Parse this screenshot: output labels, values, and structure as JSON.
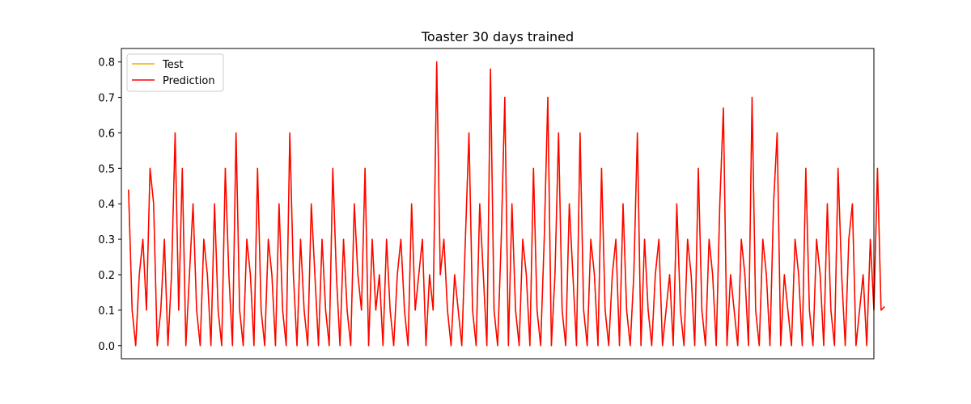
{
  "chart_data": {
    "type": "line",
    "title": "Toaster 30 days trained",
    "xlabel": "",
    "ylabel": "",
    "x_ticks_visible": false,
    "xlim": [
      -2,
      208
    ],
    "ylim": [
      -0.037,
      0.838
    ],
    "y_ticks": [
      "0.0",
      "0.1",
      "0.2",
      "0.3",
      "0.4",
      "0.5",
      "0.6",
      "0.7",
      "0.8"
    ],
    "grid": false,
    "legend": "upper left",
    "series": [
      {
        "name": "Test",
        "color": "#ffa500",
        "values": [
          0.44,
          0.1,
          0.0,
          0.2,
          0.3,
          0.1,
          0.5,
          0.4,
          0.0,
          0.1,
          0.3,
          0.0,
          0.2,
          0.6,
          0.1,
          0.5,
          0.0,
          0.2,
          0.4,
          0.1,
          0.0,
          0.3,
          0.2,
          0.0,
          0.4,
          0.1,
          0.0,
          0.5,
          0.2,
          0.0,
          0.6,
          0.1,
          0.0,
          0.3,
          0.2,
          0.0,
          0.5,
          0.1,
          0.0,
          0.3,
          0.2,
          0.0,
          0.4,
          0.1,
          0.0,
          0.6,
          0.2,
          0.0,
          0.3,
          0.1,
          0.0,
          0.4,
          0.2,
          0.0,
          0.3,
          0.1,
          0.0,
          0.5,
          0.2,
          0.0,
          0.3,
          0.1,
          0.0,
          0.4,
          0.2,
          0.1,
          0.5,
          0.0,
          0.3,
          0.1,
          0.2,
          0.0,
          0.3,
          0.1,
          0.0,
          0.2,
          0.3,
          0.1,
          0.0,
          0.4,
          0.1,
          0.2,
          0.3,
          0.0,
          0.2,
          0.1,
          0.8,
          0.2,
          0.3,
          0.1,
          0.0,
          0.2,
          0.1,
          0.0,
          0.3,
          0.6,
          0.1,
          0.0,
          0.4,
          0.2,
          0.0,
          0.78,
          0.1,
          0.0,
          0.3,
          0.7,
          0.0,
          0.4,
          0.1,
          0.0,
          0.3,
          0.2,
          0.0,
          0.5,
          0.1,
          0.0,
          0.3,
          0.7,
          0.0,
          0.2,
          0.6,
          0.1,
          0.0,
          0.4,
          0.2,
          0.0,
          0.6,
          0.1,
          0.0,
          0.3,
          0.2,
          0.0,
          0.5,
          0.1,
          0.0,
          0.2,
          0.3,
          0.0,
          0.4,
          0.1,
          0.0,
          0.2,
          0.6,
          0.0,
          0.3,
          0.1,
          0.0,
          0.2,
          0.3,
          0.0,
          0.1,
          0.2,
          0.0,
          0.4,
          0.1,
          0.0,
          0.3,
          0.2,
          0.0,
          0.5,
          0.1,
          0.0,
          0.3,
          0.2,
          0.0,
          0.4,
          0.67,
          0.0,
          0.2,
          0.1,
          0.0,
          0.3,
          0.2,
          0.0,
          0.7,
          0.1,
          0.0,
          0.3,
          0.2,
          0.0,
          0.4,
          0.6,
          0.0,
          0.2,
          0.1,
          0.0,
          0.3,
          0.2,
          0.0,
          0.5,
          0.1,
          0.0,
          0.3,
          0.2,
          0.0,
          0.4,
          0.1,
          0.0,
          0.5,
          0.2,
          0.0,
          0.3,
          0.4,
          0.0,
          0.1,
          0.2,
          0.0,
          0.3,
          0.1,
          0.5,
          0.1,
          0.11
        ]
      },
      {
        "name": "Prediction",
        "color": "#ff0000",
        "values": [
          0.44,
          0.1,
          0.0,
          0.2,
          0.3,
          0.1,
          0.5,
          0.4,
          0.0,
          0.1,
          0.3,
          0.0,
          0.2,
          0.6,
          0.1,
          0.5,
          0.0,
          0.2,
          0.4,
          0.1,
          0.0,
          0.3,
          0.2,
          0.0,
          0.4,
          0.1,
          0.0,
          0.5,
          0.2,
          0.0,
          0.6,
          0.1,
          0.0,
          0.3,
          0.2,
          0.0,
          0.5,
          0.1,
          0.0,
          0.3,
          0.2,
          0.0,
          0.4,
          0.1,
          0.0,
          0.6,
          0.2,
          0.0,
          0.3,
          0.1,
          0.0,
          0.4,
          0.2,
          0.0,
          0.3,
          0.1,
          0.0,
          0.5,
          0.2,
          0.0,
          0.3,
          0.1,
          0.0,
          0.4,
          0.2,
          0.1,
          0.5,
          0.0,
          0.3,
          0.1,
          0.2,
          0.0,
          0.3,
          0.1,
          0.0,
          0.2,
          0.3,
          0.1,
          0.0,
          0.4,
          0.1,
          0.2,
          0.3,
          0.0,
          0.2,
          0.1,
          0.8,
          0.2,
          0.3,
          0.1,
          0.0,
          0.2,
          0.1,
          0.0,
          0.3,
          0.6,
          0.1,
          0.0,
          0.4,
          0.2,
          0.0,
          0.78,
          0.1,
          0.0,
          0.3,
          0.7,
          0.0,
          0.4,
          0.1,
          0.0,
          0.3,
          0.2,
          0.0,
          0.5,
          0.1,
          0.0,
          0.3,
          0.7,
          0.0,
          0.2,
          0.6,
          0.1,
          0.0,
          0.4,
          0.2,
          0.0,
          0.6,
          0.1,
          0.0,
          0.3,
          0.2,
          0.0,
          0.5,
          0.1,
          0.0,
          0.2,
          0.3,
          0.0,
          0.4,
          0.1,
          0.0,
          0.2,
          0.6,
          0.0,
          0.3,
          0.1,
          0.0,
          0.2,
          0.3,
          0.0,
          0.1,
          0.2,
          0.0,
          0.4,
          0.1,
          0.0,
          0.3,
          0.2,
          0.0,
          0.5,
          0.1,
          0.0,
          0.3,
          0.2,
          0.0,
          0.4,
          0.67,
          0.0,
          0.2,
          0.1,
          0.0,
          0.3,
          0.2,
          0.0,
          0.7,
          0.1,
          0.0,
          0.3,
          0.2,
          0.0,
          0.4,
          0.6,
          0.0,
          0.2,
          0.1,
          0.0,
          0.3,
          0.2,
          0.0,
          0.5,
          0.1,
          0.0,
          0.3,
          0.2,
          0.0,
          0.4,
          0.1,
          0.0,
          0.5,
          0.2,
          0.0,
          0.3,
          0.4,
          0.0,
          0.1,
          0.2,
          0.0,
          0.3,
          0.1,
          0.5,
          0.1,
          0.11
        ]
      }
    ]
  }
}
